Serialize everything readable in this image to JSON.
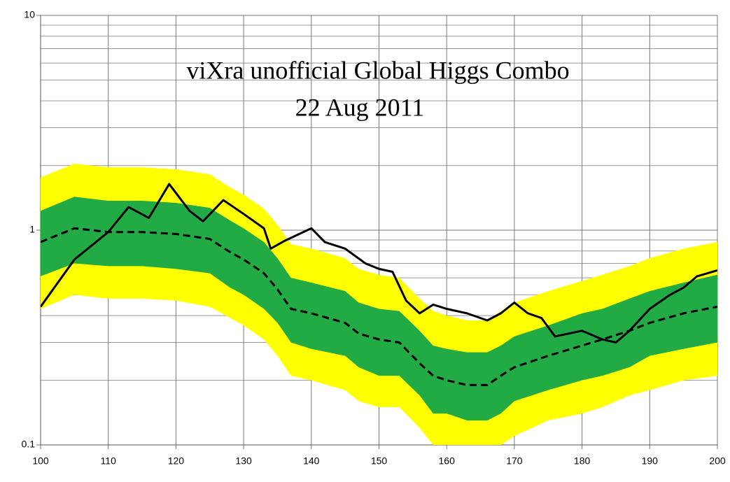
{
  "chart_data": {
    "type": "band-line",
    "title": "viXra unofficial Global Higgs Combo",
    "subtitle": "22 Aug 2011",
    "log_y": true,
    "grid": true,
    "xlim": [
      100,
      200
    ],
    "xticks": [
      100,
      110,
      120,
      130,
      140,
      150,
      160,
      170,
      180,
      190,
      200
    ],
    "ylim": [
      0.1,
      10
    ],
    "yticks": [
      0.1,
      1,
      10
    ],
    "yminorticks": [
      0.2,
      0.3,
      0.4,
      0.5,
      0.6,
      0.7,
      0.8,
      0.9,
      2,
      3,
      4,
      5,
      6,
      7,
      8,
      9
    ],
    "bands": [
      {
        "color": "#ffff00",
        "x": [
          100,
          105,
          110,
          115,
          120,
          125,
          128,
          130,
          133,
          135,
          137,
          140,
          145,
          147,
          150,
          153,
          156,
          158,
          160,
          163,
          166,
          168,
          170,
          175,
          180,
          183,
          187,
          190,
          195,
          200
        ],
        "upper": [
          1.76,
          2.04,
          1.96,
          1.96,
          1.92,
          1.82,
          1.58,
          1.46,
          1.26,
          1.06,
          0.86,
          0.82,
          0.74,
          0.66,
          0.62,
          0.6,
          0.48,
          0.42,
          0.4,
          0.38,
          0.38,
          0.42,
          0.46,
          0.52,
          0.58,
          0.62,
          0.68,
          0.74,
          0.82,
          0.88
        ],
        "lower": [
          0.43,
          0.5,
          0.48,
          0.48,
          0.47,
          0.44,
          0.39,
          0.36,
          0.31,
          0.26,
          0.21,
          0.2,
          0.18,
          0.16,
          0.15,
          0.15,
          0.12,
          0.1,
          0.1,
          0.09,
          0.09,
          0.1,
          0.11,
          0.13,
          0.14,
          0.15,
          0.17,
          0.18,
          0.2,
          0.21
        ]
      },
      {
        "color": "#22aa44",
        "x": [
          100,
          105,
          110,
          115,
          120,
          125,
          128,
          130,
          133,
          135,
          137,
          140,
          145,
          147,
          150,
          153,
          156,
          158,
          160,
          163,
          166,
          168,
          170,
          175,
          180,
          183,
          187,
          190,
          195,
          200
        ],
        "upper": [
          1.23,
          1.43,
          1.37,
          1.37,
          1.34,
          1.27,
          1.11,
          1.02,
          0.88,
          0.74,
          0.6,
          0.57,
          0.52,
          0.46,
          0.43,
          0.42,
          0.34,
          0.29,
          0.28,
          0.27,
          0.27,
          0.29,
          0.32,
          0.36,
          0.41,
          0.43,
          0.48,
          0.52,
          0.57,
          0.62
        ],
        "lower": [
          0.61,
          0.7,
          0.68,
          0.68,
          0.66,
          0.63,
          0.54,
          0.5,
          0.43,
          0.37,
          0.3,
          0.28,
          0.26,
          0.23,
          0.21,
          0.21,
          0.17,
          0.14,
          0.14,
          0.13,
          0.13,
          0.14,
          0.16,
          0.18,
          0.2,
          0.21,
          0.23,
          0.26,
          0.28,
          0.3
        ]
      }
    ],
    "series": [
      {
        "color": "#000000",
        "dashed": true,
        "x": [
          100,
          105,
          110,
          115,
          120,
          125,
          128,
          130,
          133,
          135,
          137,
          140,
          145,
          147,
          150,
          153,
          156,
          158,
          160,
          163,
          166,
          168,
          170,
          175,
          180,
          183,
          187,
          190,
          195,
          200
        ],
        "values": [
          0.88,
          1.02,
          0.98,
          0.98,
          0.96,
          0.91,
          0.79,
          0.73,
          0.63,
          0.53,
          0.43,
          0.41,
          0.37,
          0.33,
          0.31,
          0.3,
          0.24,
          0.21,
          0.2,
          0.19,
          0.19,
          0.21,
          0.23,
          0.26,
          0.29,
          0.31,
          0.34,
          0.37,
          0.41,
          0.44
        ]
      },
      {
        "color": "#000000",
        "dashed": false,
        "x": [
          100,
          105,
          110,
          113,
          116,
          119,
          122,
          124,
          127,
          130,
          133,
          134,
          136,
          140,
          142,
          145,
          148,
          150,
          152,
          154,
          156,
          158,
          160,
          163,
          166,
          168,
          170,
          172,
          174,
          176,
          180,
          183,
          185,
          187,
          190,
          193,
          195,
          197,
          200
        ],
        "values": [
          0.44,
          0.73,
          0.98,
          1.28,
          1.14,
          1.64,
          1.23,
          1.1,
          1.38,
          1.19,
          1.02,
          0.82,
          0.89,
          1.02,
          0.88,
          0.82,
          0.7,
          0.66,
          0.64,
          0.47,
          0.41,
          0.45,
          0.43,
          0.41,
          0.38,
          0.41,
          0.46,
          0.41,
          0.39,
          0.32,
          0.34,
          0.31,
          0.3,
          0.34,
          0.43,
          0.5,
          0.54,
          0.61,
          0.65
        ]
      }
    ]
  }
}
